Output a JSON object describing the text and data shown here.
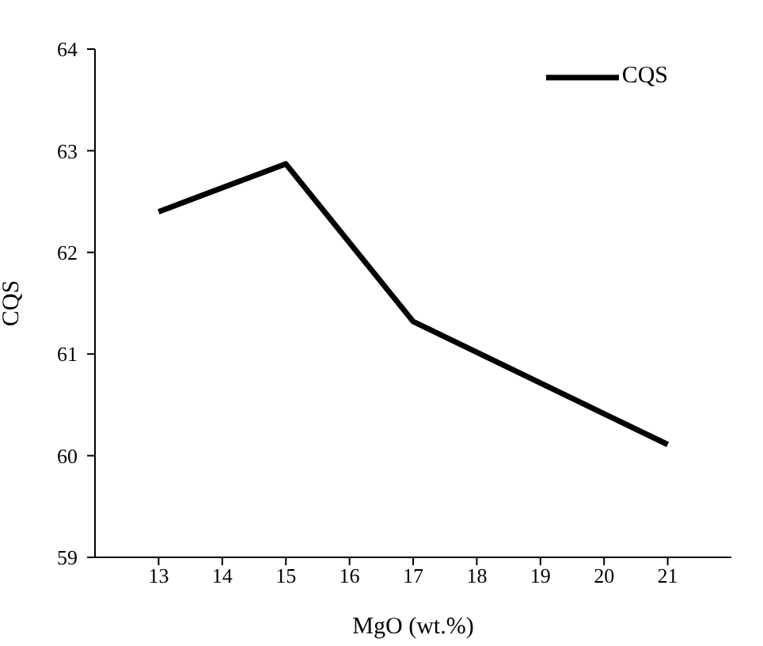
{
  "chart_data": {
    "type": "line",
    "xlabel": "MgO (wt.%)",
    "ylabel": "CQS",
    "x": [
      13,
      15,
      17,
      21
    ],
    "series": [
      {
        "name": "CQS",
        "color": "#000000",
        "values": [
          62.4,
          62.87,
          61.32,
          60.11
        ]
      }
    ],
    "xlim": [
      12,
      22
    ],
    "xticks": [
      13,
      14,
      15,
      16,
      17,
      18,
      19,
      20,
      21
    ],
    "ylim": [
      59,
      64
    ],
    "yticks": [
      59,
      60,
      61,
      62,
      63,
      64
    ],
    "grid": false,
    "legend": "top right",
    "marker": "none",
    "line_style": "solid"
  }
}
